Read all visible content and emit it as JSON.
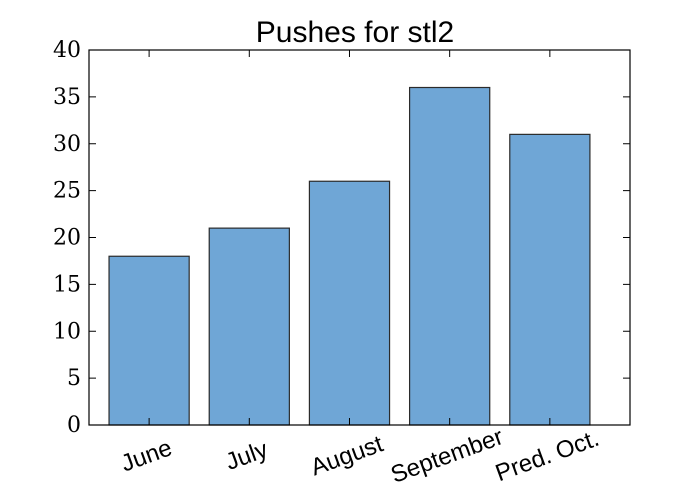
{
  "chart_data": {
    "type": "bar",
    "title": "Pushes for stl2",
    "xlabel": "",
    "ylabel": "",
    "categories": [
      "June",
      "July",
      "August",
      "September",
      "Pred. Oct."
    ],
    "values": [
      18,
      21,
      26,
      36,
      31
    ],
    "ylim": [
      0,
      40
    ],
    "yticks": [
      "0",
      "5",
      "10",
      "15",
      "20",
      "25",
      "30",
      "35",
      "40"
    ],
    "grid": false,
    "legend": "none",
    "bar_color": "#6fa6d6",
    "edge_color": "#2b2b2b"
  }
}
